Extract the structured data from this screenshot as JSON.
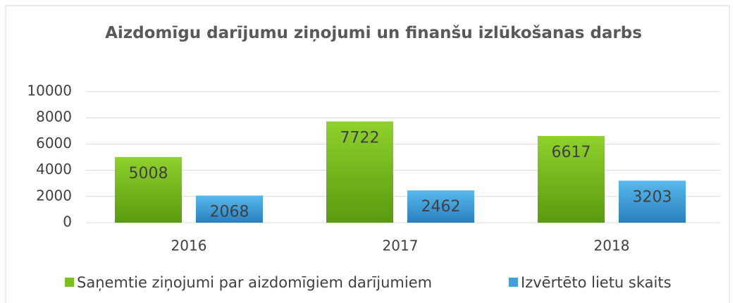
{
  "chart_data": {
    "type": "bar",
    "title": "Aizdomīgu darījumu ziņojumi un finanšu izlūkošanas darbs",
    "categories": [
      "2016",
      "2017",
      "2018"
    ],
    "series": [
      {
        "name": "Saņemtie ziņojumi par aizdomīgiem darījumiem",
        "color": "#7cbf1e",
        "values": [
          5008,
          7722,
          6617
        ]
      },
      {
        "name": "Izvērtēto lietu skaits",
        "color": "#3fa2dc",
        "values": [
          2068,
          2462,
          3203
        ]
      }
    ],
    "ylim": [
      0,
      10000
    ],
    "yticks": [
      0,
      2000,
      4000,
      6000,
      8000,
      10000
    ],
    "grid": true,
    "legend": "bottom"
  }
}
